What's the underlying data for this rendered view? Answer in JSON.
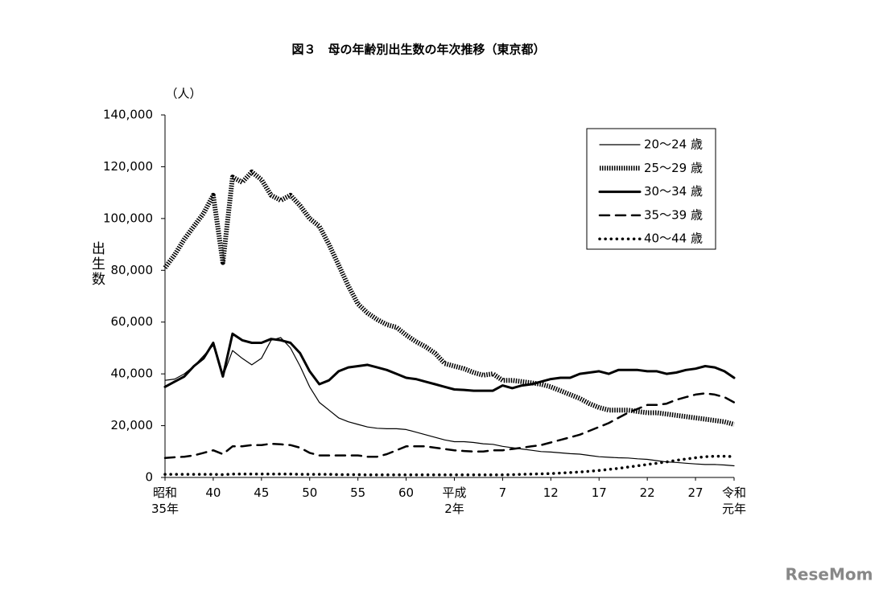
{
  "chart_data": {
    "type": "line",
    "title": "図３　母の年齢別出生数の年次推移（東京都）",
    "y_unit": "（人）",
    "y_label": "出生数",
    "watermark": "ReseMom",
    "categories": [
      "昭和\n35年",
      null,
      null,
      null,
      null,
      "40",
      null,
      null,
      null,
      null,
      "45",
      null,
      null,
      null,
      null,
      "50",
      null,
      null,
      null,
      null,
      "55",
      null,
      null,
      null,
      null,
      "60",
      null,
      null,
      null,
      null,
      "平成\n2年",
      null,
      null,
      null,
      null,
      "7",
      null,
      null,
      null,
      null,
      "12",
      null,
      null,
      null,
      null,
      "17",
      null,
      null,
      null,
      null,
      "22",
      null,
      null,
      null,
      null,
      "27",
      null,
      null,
      null,
      "令和\n元年"
    ],
    "ylim": [
      0,
      140000
    ],
    "yticks": [
      0,
      {
        "value": 20000,
        "label": "20,000"
      },
      {
        "value": 40000,
        "label": "40,000"
      },
      {
        "value": 60000,
        "label": "60,000"
      },
      {
        "value": 80000,
        "label": "80,000"
      },
      {
        "value": 100000,
        "label": "100,000"
      },
      {
        "value": 120000,
        "label": "120,000"
      },
      {
        "value": 140000,
        "label": "140,000"
      }
    ],
    "grid": false,
    "legend": "upper right",
    "series": [
      {
        "name": "20～24 歳",
        "color": "#000000",
        "line_width": 1.2,
        "dash": "none",
        "values": [
          37500,
          38000,
          40000,
          43000,
          47000,
          51000,
          39000,
          49000,
          46000,
          43500,
          46000,
          53000,
          54000,
          50000,
          43000,
          35000,
          29000,
          26000,
          23000,
          21500,
          20500,
          19500,
          19000,
          18800,
          18800,
          18500,
          17500,
          16500,
          15500,
          14500,
          13800,
          13800,
          13500,
          13000,
          12800,
          12000,
          11500,
          11000,
          10500,
          10000,
          9800,
          9500,
          9200,
          9000,
          8500,
          8000,
          7800,
          7600,
          7500,
          7200,
          7000,
          6500,
          6000,
          5800,
          5500,
          5200,
          5000,
          5000,
          4800,
          4500
        ]
      },
      {
        "name": "25～29 歳",
        "color": "#000000",
        "line_width": 6,
        "dash": "1.5 1.5",
        "values": [
          81000,
          86000,
          92000,
          97000,
          102000,
          109000,
          83000,
          116000,
          114000,
          118000,
          115000,
          109000,
          107000,
          109000,
          105000,
          100000,
          97000,
          90000,
          82000,
          74000,
          67000,
          63500,
          61000,
          59000,
          58000,
          55000,
          52500,
          50500,
          48000,
          44000,
          43000,
          42000,
          40500,
          39500,
          40000,
          37500,
          37500,
          37000,
          36500,
          36000,
          35000,
          33500,
          32000,
          30500,
          28500,
          27000,
          26000,
          26000,
          26000,
          25500,
          25000,
          25000,
          24500,
          24000,
          23500,
          23000,
          22500,
          22000,
          21500,
          20500
        ]
      },
      {
        "name": "30～34 歳",
        "color": "#000000",
        "line_width": 3,
        "dash": "none",
        "values": [
          35000,
          37000,
          39000,
          43000,
          46000,
          52000,
          39000,
          55500,
          53000,
          52000,
          52000,
          53500,
          53000,
          52000,
          48000,
          41000,
          36000,
          37500,
          41000,
          42500,
          43000,
          43500,
          42500,
          41500,
          40000,
          38500,
          38000,
          37000,
          36000,
          35000,
          34000,
          33800,
          33500,
          33500,
          33500,
          35500,
          34500,
          35500,
          36000,
          37000,
          38000,
          38500,
          38500,
          40000,
          40500,
          41000,
          40000,
          41500,
          41500,
          41500,
          41000,
          41000,
          40000,
          40500,
          41500,
          42000,
          43000,
          42500,
          41000,
          38500
        ]
      },
      {
        "name": "35～39 歳",
        "color": "#000000",
        "line_width": 2.5,
        "dash": "12 8",
        "values": [
          7500,
          7800,
          8000,
          8500,
          9500,
          10500,
          9000,
          12000,
          12000,
          12500,
          12500,
          13000,
          12800,
          12500,
          11500,
          9500,
          8500,
          8500,
          8500,
          8500,
          8500,
          8000,
          8000,
          9000,
          10500,
          12000,
          12000,
          12000,
          11500,
          11000,
          10500,
          10200,
          10000,
          10000,
          10500,
          10500,
          11000,
          11500,
          12000,
          12500,
          13500,
          14500,
          15500,
          16500,
          18000,
          19500,
          21000,
          23000,
          25000,
          26500,
          28000,
          28000,
          28500,
          30000,
          31000,
          32000,
          32500,
          32000,
          31000,
          29000
        ]
      },
      {
        "name": "40～44 歳",
        "color": "#000000",
        "line_width": 3.5,
        "dash": "0.1 7",
        "values": [
          1200,
          1200,
          1200,
          1200,
          1200,
          1200,
          1100,
          1300,
          1300,
          1300,
          1300,
          1300,
          1300,
          1300,
          1200,
          1200,
          1200,
          1200,
          1100,
          1100,
          1100,
          1000,
          1000,
          1000,
          1000,
          1000,
          1000,
          1000,
          1000,
          1000,
          1000,
          1000,
          1000,
          1000,
          1000,
          1000,
          1100,
          1200,
          1300,
          1400,
          1500,
          1700,
          1900,
          2100,
          2400,
          2700,
          3100,
          3500,
          4000,
          4500,
          5000,
          5500,
          6000,
          6600,
          7100,
          7600,
          8000,
          8200,
          8200,
          8000
        ]
      }
    ]
  }
}
